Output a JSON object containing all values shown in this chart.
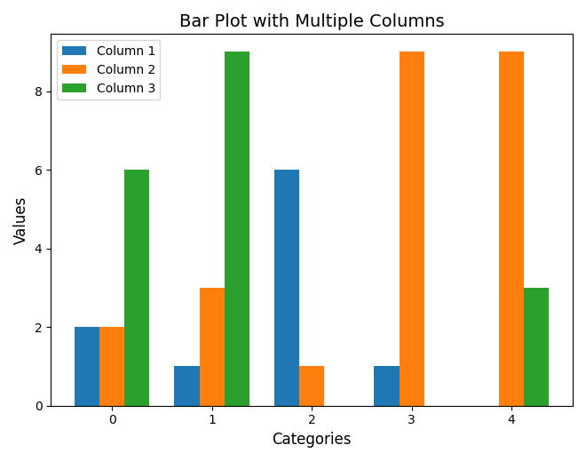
{
  "title": "Bar Plot with Multiple Columns",
  "xlabel": "Categories",
  "ylabel": "Values",
  "categories": [
    0,
    1,
    2,
    3,
    4
  ],
  "series": {
    "Column 1": [
      2,
      1,
      6,
      1,
      0
    ],
    "Column 2": [
      2,
      3,
      1,
      9,
      9
    ],
    "Column 3": [
      6,
      9,
      0,
      0,
      3
    ]
  },
  "colors": {
    "Column 1": "#1f77b4",
    "Column 2": "#ff7f0e",
    "Column 3": "#2ca02c"
  },
  "bar_width": 0.25,
  "legend_loc": "upper left",
  "title_fontsize": 14,
  "label_fontsize": 12,
  "tick_fontsize": 10
}
